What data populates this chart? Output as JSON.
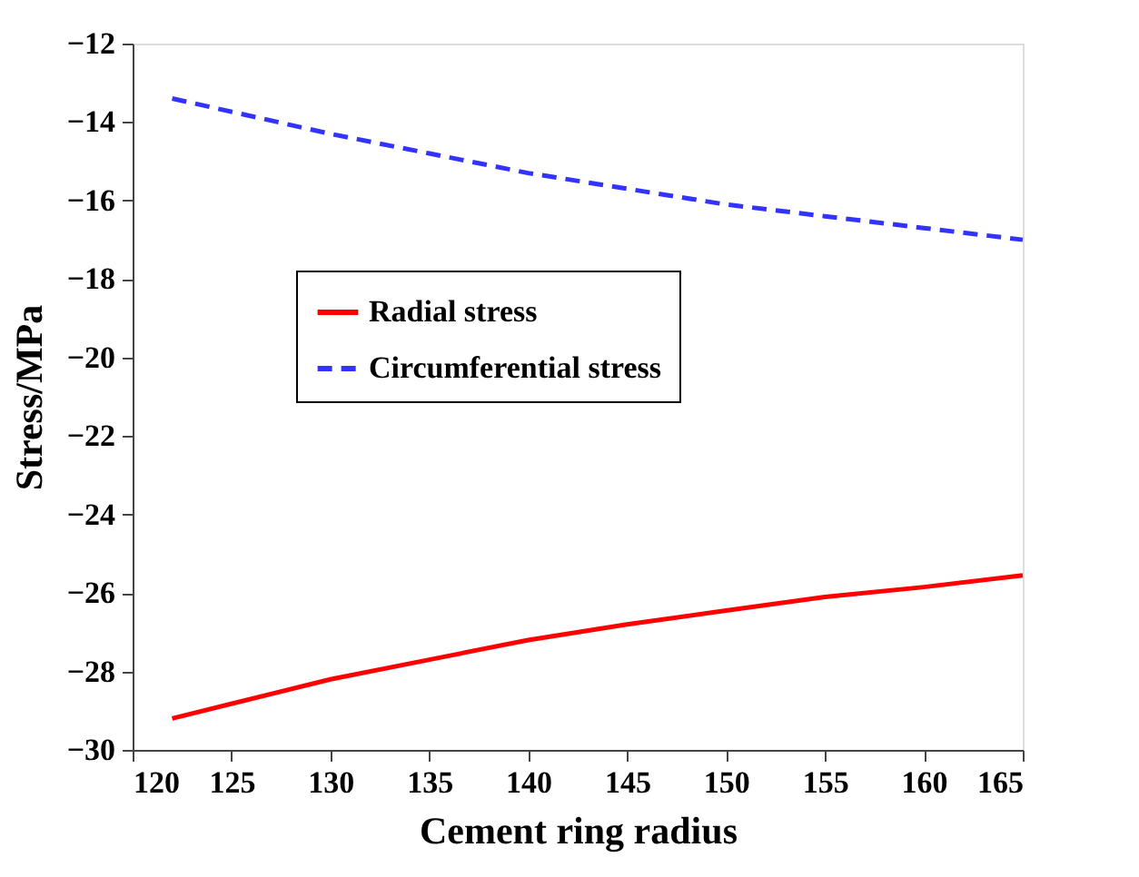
{
  "chart_data": {
    "type": "line",
    "xlabel": "Cement   ring   radius",
    "ylabel": "Stress/MPa",
    "x": [
      122,
      130,
      135,
      140,
      145,
      150,
      155,
      160,
      165
    ],
    "series": [
      {
        "name": "Radial stress",
        "color": "#ff0000",
        "line_style": "solid",
        "values": [
          -29.2,
          -28.2,
          -27.7,
          -27.2,
          -26.8,
          -26.45,
          -26.1,
          -25.85,
          -25.55
        ]
      },
      {
        "name": "Circumferential stress",
        "color": "#3333ff",
        "line_style": "dashed",
        "values": [
          -13.4,
          -14.3,
          -14.8,
          -15.3,
          -15.7,
          -16.1,
          -16.4,
          -16.7,
          -17.0
        ]
      }
    ],
    "xlim": [
      120,
      165
    ],
    "xticks": [
      120,
      125,
      130,
      135,
      140,
      145,
      150,
      155,
      160,
      165
    ],
    "ylim": [
      -30,
      -12
    ],
    "yticks": [
      -30,
      -28,
      -26,
      -24,
      -22,
      -20,
      -18,
      -16,
      -14,
      -12
    ],
    "grid": false,
    "legend": "left",
    "marker": "none"
  }
}
